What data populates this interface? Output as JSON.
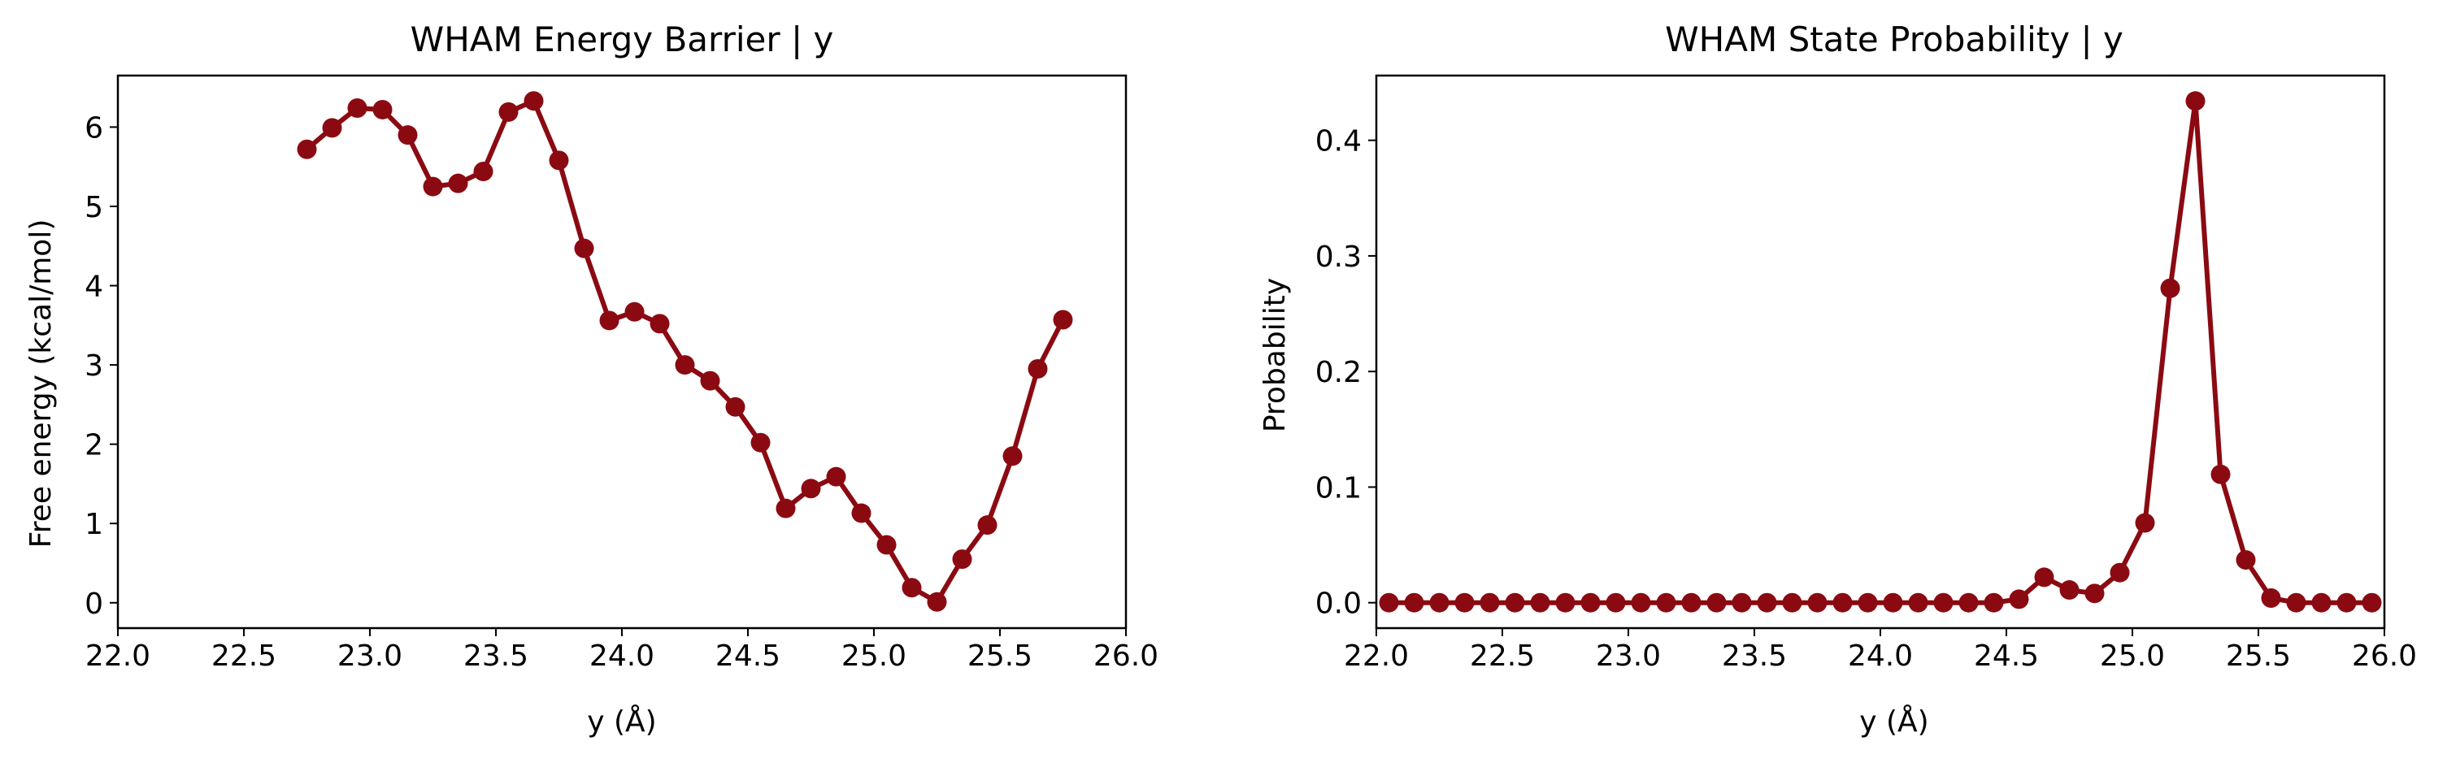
{
  "chart_data": [
    {
      "type": "line",
      "title": "WHAM Energy Barrier | y",
      "xlabel": "y (Å)",
      "ylabel": "Free energy (kcal/mol)",
      "xlim": [
        22.0,
        26.0
      ],
      "ylim": [
        -0.32,
        6.65
      ],
      "xticks": [
        "22.0",
        "22.5",
        "23.0",
        "23.5",
        "24.0",
        "24.5",
        "25.0",
        "25.5",
        "26.0"
      ],
      "yticks": [
        "0",
        "1",
        "2",
        "3",
        "4",
        "5",
        "6"
      ],
      "grid": false,
      "color": "#8b0a12",
      "series": [
        {
          "x": [
            22.75,
            22.85,
            22.95,
            23.05,
            23.15,
            23.25,
            23.35,
            23.45,
            23.55,
            23.65,
            23.75,
            23.85,
            23.95,
            24.05,
            24.15,
            24.25,
            24.35,
            24.45,
            24.55,
            24.65,
            24.75,
            24.85,
            24.95,
            25.05,
            25.15,
            25.25,
            25.35,
            25.45,
            25.55,
            25.65,
            25.75
          ],
          "values": [
            5.72,
            5.99,
            6.24,
            6.22,
            5.9,
            5.25,
            5.29,
            5.44,
            6.19,
            6.33,
            5.58,
            4.47,
            3.56,
            3.67,
            3.52,
            3.0,
            2.8,
            2.47,
            2.02,
            1.19,
            1.44,
            1.59,
            1.13,
            0.73,
            0.19,
            0.01,
            0.55,
            0.98,
            1.85,
            2.95,
            3.57
          ]
        }
      ]
    },
    {
      "type": "line",
      "title": "WHAM State Probability | y",
      "xlabel": "y (Å)",
      "ylabel": "Probability",
      "xlim": [
        22.0,
        26.0
      ],
      "ylim": [
        -0.022,
        0.456
      ],
      "xticks": [
        "22.0",
        "22.5",
        "23.0",
        "23.5",
        "24.0",
        "24.5",
        "25.0",
        "25.5",
        "26.0"
      ],
      "yticks": [
        "0.0",
        "0.1",
        "0.2",
        "0.3",
        "0.4"
      ],
      "grid": false,
      "color": "#8b0a12",
      "series": [
        {
          "x": [
            22.05,
            22.15,
            22.25,
            22.35,
            22.45,
            22.55,
            22.65,
            22.75,
            22.85,
            22.95,
            23.05,
            23.15,
            23.25,
            23.35,
            23.45,
            23.55,
            23.65,
            23.75,
            23.85,
            23.95,
            24.05,
            24.15,
            24.25,
            24.35,
            24.45,
            24.55,
            24.65,
            24.75,
            24.85,
            24.95,
            25.05,
            25.15,
            25.25,
            25.35,
            25.45,
            25.55,
            25.65,
            25.75,
            25.85,
            25.95
          ],
          "values": [
            0,
            0,
            0,
            0,
            0,
            0,
            0,
            0,
            0,
            0,
            0,
            0,
            0,
            0,
            0,
            0,
            0,
            0,
            0,
            0,
            0,
            0,
            0,
            0,
            0,
            0.003,
            0.022,
            0.011,
            0.008,
            0.026,
            0.069,
            0.272,
            0.434,
            0.111,
            0.037,
            0.004,
            0,
            0,
            0,
            0
          ]
        }
      ]
    }
  ]
}
